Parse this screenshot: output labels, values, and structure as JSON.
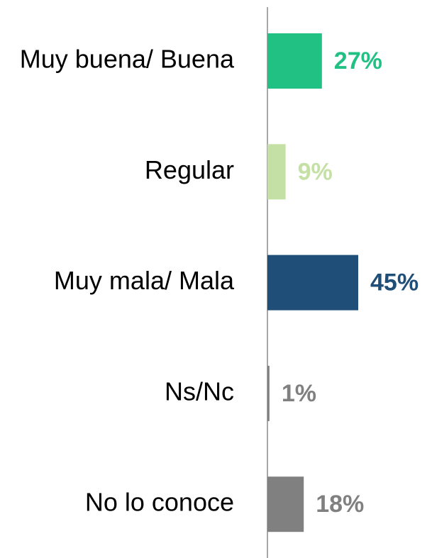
{
  "chart_data": {
    "type": "bar",
    "orientation": "horizontal",
    "categories": [
      "Muy buena/ Buena",
      "Regular",
      "Muy mala/ Mala",
      "Ns/Nc",
      "No lo conoce"
    ],
    "values": [
      27,
      9,
      45,
      1,
      18
    ],
    "value_labels": [
      "27%",
      "9%",
      "45%",
      "1%",
      "18%"
    ],
    "colors": [
      "#21c083",
      "#c5e0a5",
      "#1f4e79",
      "#808080",
      "#808080"
    ]
  }
}
